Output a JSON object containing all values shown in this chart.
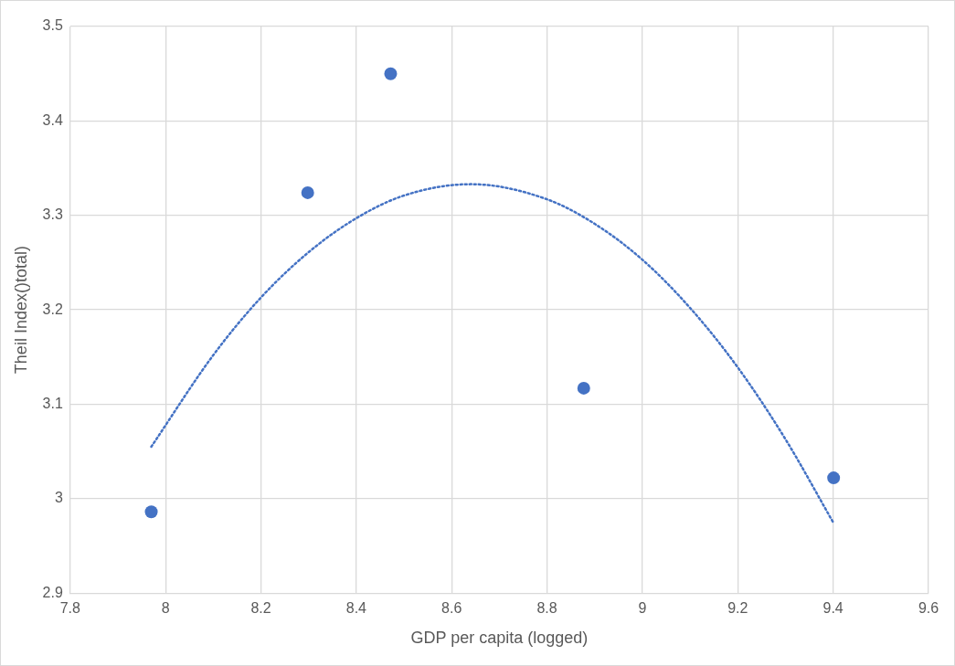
{
  "chart_data": {
    "type": "scatter",
    "xlabel": "GDP per capita (logged)",
    "ylabel": "Theil Index()total)",
    "xlim": [
      7.8,
      9.6
    ],
    "xticks": [
      7.8,
      8,
      8.2,
      8.4,
      8.6,
      8.8,
      9,
      9.2,
      9.4,
      9.6
    ],
    "ylim": [
      2.9,
      3.5
    ],
    "yticks": [
      2.9,
      3,
      3.1,
      3.2,
      3.3,
      3.4,
      3.5
    ],
    "grid": true,
    "legend": false,
    "marker": "circle",
    "series": [
      {
        "color": "#4472c4",
        "x": [
          7.97,
          8.298,
          8.472,
          8.877,
          9.401
        ],
        "values": [
          2.986,
          3.324,
          3.45,
          3.117,
          3.022
        ]
      },
      {
        "type": "line",
        "color": "#4472c4",
        "line_style": "dotted",
        "marker": "none",
        "x": [
          7.97,
          8.1,
          8.2,
          8.3,
          8.4,
          8.5,
          8.64,
          8.8,
          8.9,
          9.0,
          9.1,
          9.2,
          9.3,
          9.4
        ],
        "values": [
          3.055,
          3.152,
          3.213,
          3.261,
          3.297,
          3.321,
          3.333,
          3.317,
          3.291,
          3.253,
          3.202,
          3.139,
          3.063,
          2.975
        ]
      }
    ]
  }
}
